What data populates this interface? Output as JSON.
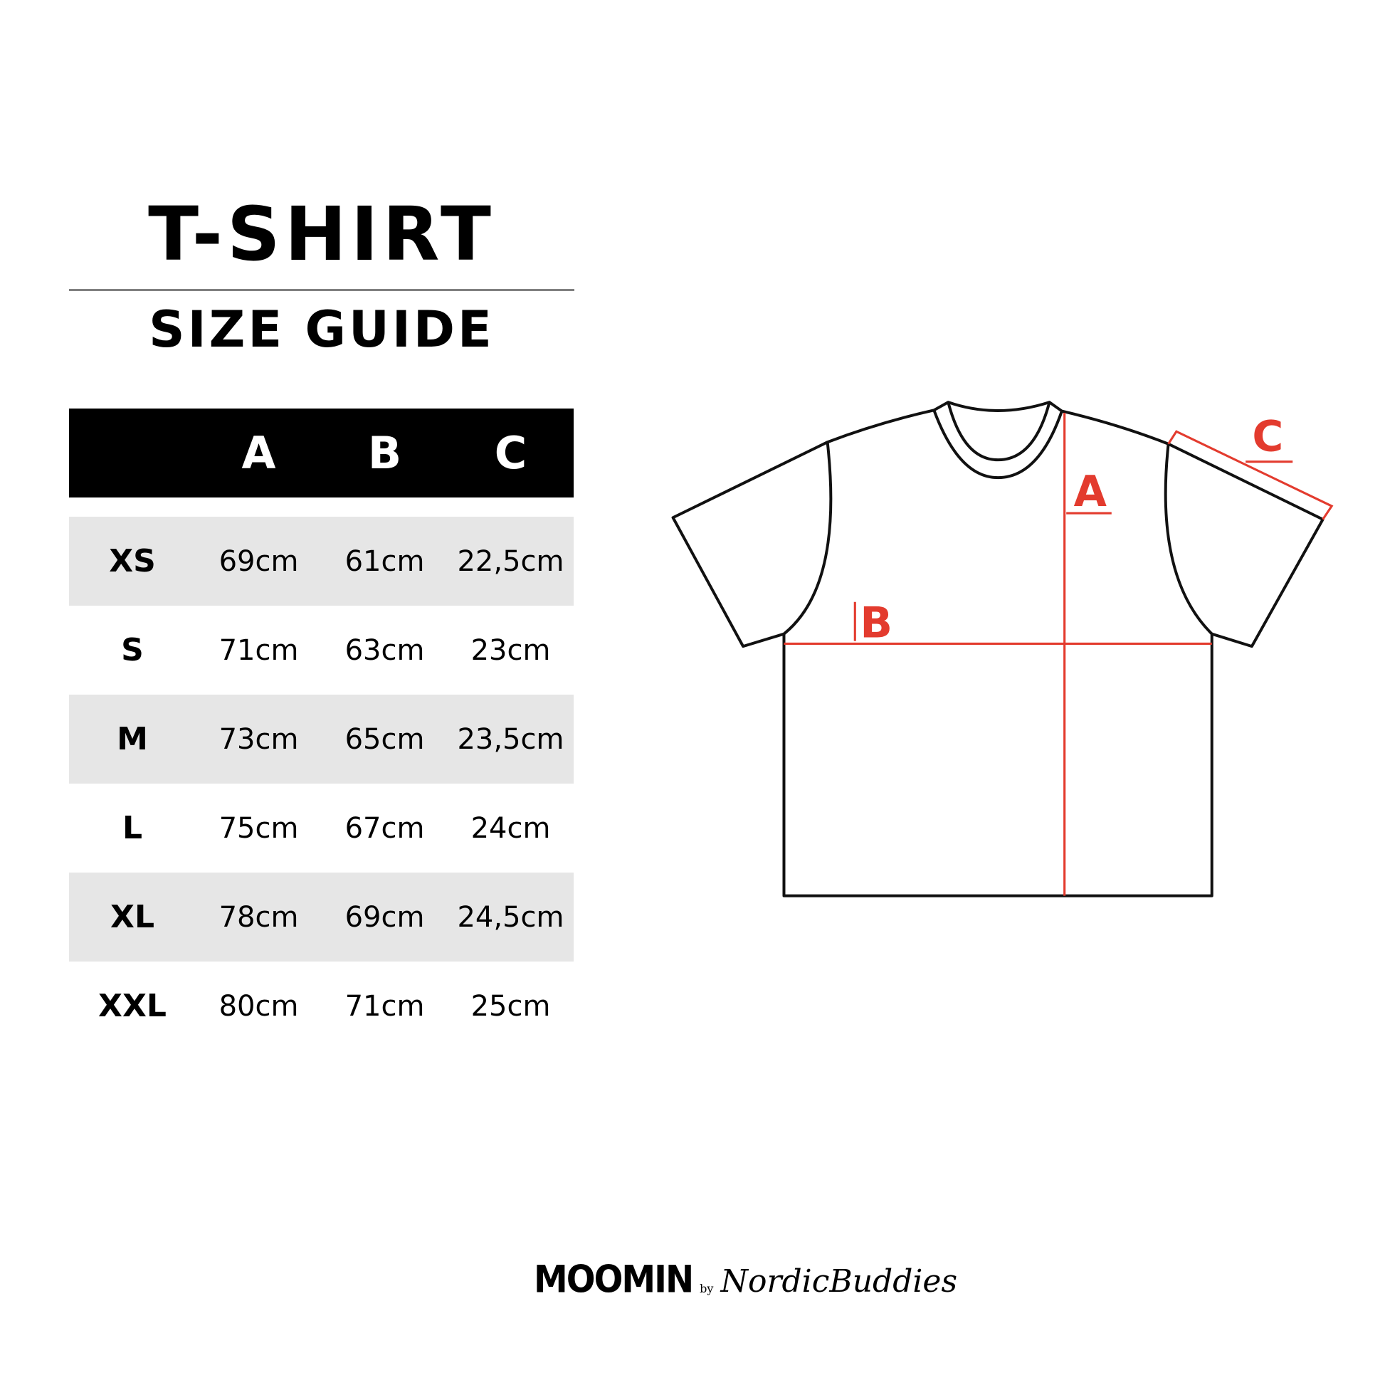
{
  "header": {
    "title": "T-SHIRT",
    "subtitle": "SIZE GUIDE"
  },
  "table": {
    "columns": [
      "",
      "A",
      "B",
      "C"
    ],
    "rows": [
      {
        "size": "XS",
        "a": "69cm",
        "b": "61cm",
        "c": "22,5cm"
      },
      {
        "size": "S",
        "a": "71cm",
        "b": "63cm",
        "c": "23cm"
      },
      {
        "size": "M",
        "a": "73cm",
        "b": "65cm",
        "c": "23,5cm"
      },
      {
        "size": "L",
        "a": "75cm",
        "b": "67cm",
        "c": "24cm"
      },
      {
        "size": "XL",
        "a": "78cm",
        "b": "69cm",
        "c": "24,5cm"
      },
      {
        "size": "XXL",
        "a": "80cm",
        "b": "71cm",
        "c": "25cm"
      }
    ]
  },
  "diagram": {
    "label_a": "A",
    "label_b": "B",
    "label_c": "C",
    "accent_color": "#e33b2e"
  },
  "logo": {
    "brand": "MOOMIN",
    "by": "by",
    "partner": "NordicBuddies"
  }
}
